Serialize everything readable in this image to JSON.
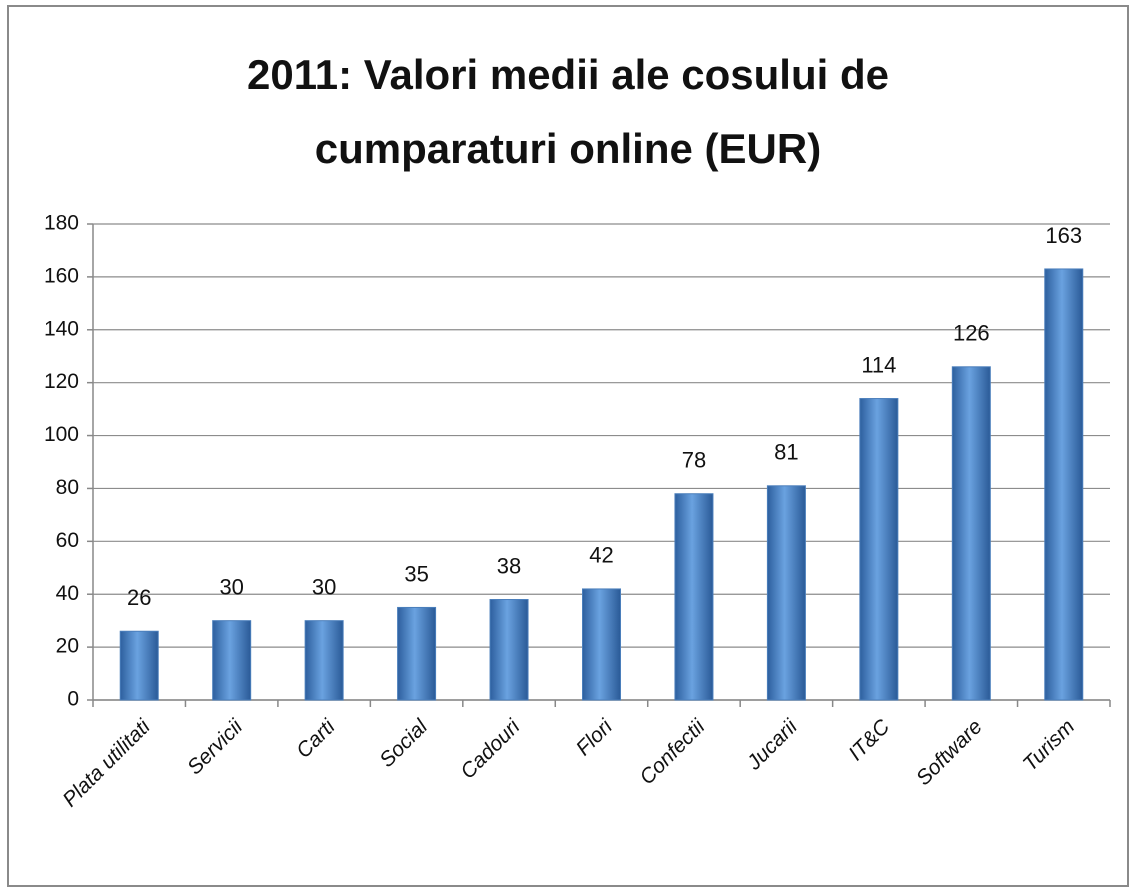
{
  "chart_data": {
    "type": "bar",
    "title": [
      "2011: Valori medii ale cosului de",
      "cumparaturi online (EUR)"
    ],
    "categories": [
      "Plata utilitati",
      "Servicii",
      "Carti",
      "Social",
      "Cadouri",
      "Flori",
      "Confectii",
      "Jucarii",
      "IT&C",
      "Software",
      "Turism"
    ],
    "values": [
      26,
      30,
      30,
      35,
      38,
      42,
      78,
      81,
      114,
      126,
      163
    ],
    "color": "#4a7ebb",
    "ylim": [
      0,
      180
    ],
    "yticks": [
      0,
      20,
      40,
      60,
      80,
      100,
      120,
      140,
      160,
      180
    ],
    "grid": true
  }
}
